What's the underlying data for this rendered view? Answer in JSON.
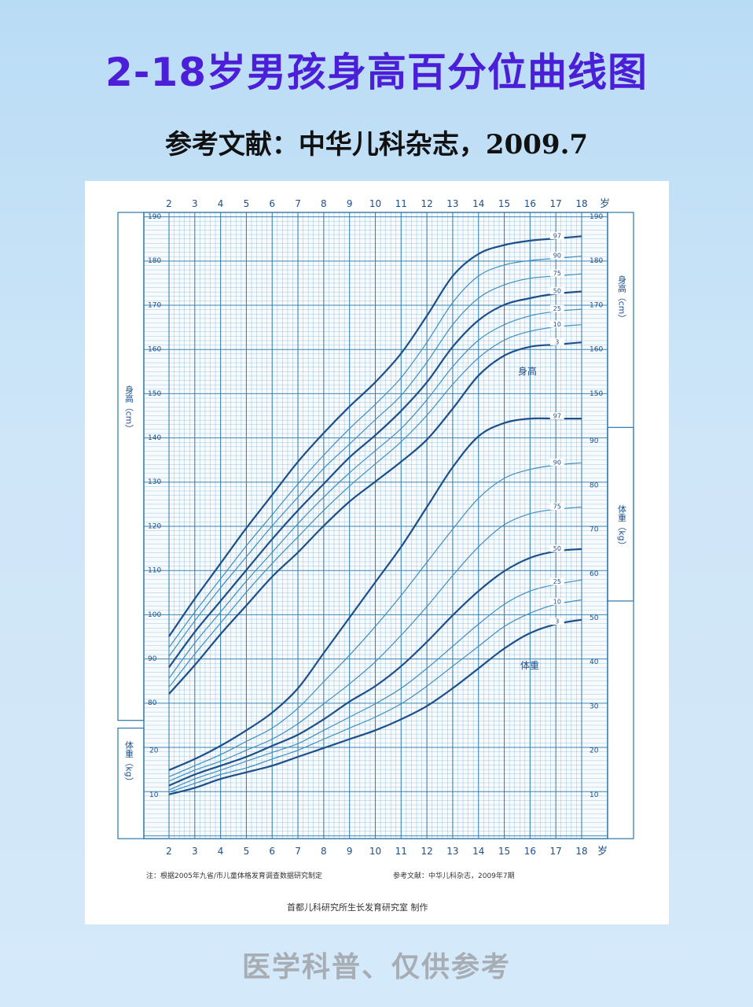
{
  "page": {
    "title": "2-18岁男孩身高百分位曲线图",
    "subtitle": "参考文献：中华儿科杂志，2009.7",
    "footer": "医学科普、仅供参考"
  },
  "chart_card": {
    "note": "注：根据2005年九省/市儿童体格发育调查数据研究制定",
    "reference": "参考文献：中华儿科杂志，2009年7期",
    "maker": "首都儿科研究所生长发育研究室  制作",
    "age_unit": "岁",
    "height_curve_label": "身高",
    "weight_curve_label": "体重"
  },
  "colors": {
    "title": "#4b1fd8",
    "grid": "#2b78a8",
    "major_curve": "#1d4f8a",
    "minor_curve": "#3f8fc0",
    "background": "#cfe6f8"
  },
  "chart_data": {
    "type": "line",
    "x_axis": {
      "label": "岁",
      "range": [
        2,
        18
      ],
      "ticks": [
        2,
        3,
        4,
        5,
        6,
        7,
        8,
        9,
        10,
        11,
        12,
        13,
        14,
        15,
        16,
        17,
        18
      ]
    },
    "height_axis": {
      "label": "身高（cm）",
      "range": [
        75,
        190
      ],
      "ticks": [
        80,
        90,
        100,
        110,
        120,
        130,
        140,
        150,
        160,
        170,
        180,
        190
      ]
    },
    "weight_axis": {
      "label": "体重（kg）",
      "range": [
        0,
        95
      ],
      "ticks": [
        10,
        20,
        30,
        40,
        50,
        60,
        70,
        80,
        90
      ]
    },
    "ages": [
      2,
      3,
      4,
      5,
      6,
      7,
      8,
      9,
      10,
      11,
      12,
      13,
      14,
      15,
      16,
      17,
      18
    ],
    "height_series": [
      {
        "name": "97",
        "values": [
          95.0,
          103.5,
          111.5,
          119.5,
          127.0,
          134.5,
          141.0,
          147.0,
          152.5,
          159.0,
          167.5,
          176.5,
          181.5,
          183.5,
          184.5,
          185.0,
          185.5
        ]
      },
      {
        "name": "90",
        "values": [
          92.5,
          100.5,
          108.0,
          115.5,
          122.5,
          129.5,
          136.0,
          142.0,
          147.5,
          153.5,
          161.5,
          170.5,
          176.5,
          179.0,
          180.0,
          180.5,
          181.0
        ]
      },
      {
        "name": "75",
        "values": [
          90.5,
          98.5,
          106.0,
          113.0,
          120.0,
          126.5,
          133.0,
          138.5,
          144.0,
          149.5,
          157.0,
          165.5,
          171.5,
          174.5,
          176.0,
          176.5,
          177.0
        ]
      },
      {
        "name": "50",
        "values": [
          88.0,
          96.0,
          103.0,
          110.0,
          117.0,
          123.5,
          129.5,
          135.5,
          140.5,
          146.0,
          152.5,
          160.5,
          166.5,
          170.0,
          171.5,
          172.5,
          173.0
        ]
      },
      {
        "name": "25",
        "values": [
          85.5,
          93.5,
          100.5,
          107.5,
          114.0,
          120.5,
          126.5,
          132.0,
          137.0,
          142.0,
          148.5,
          156.0,
          162.0,
          165.5,
          167.5,
          168.5,
          169.0
        ]
      },
      {
        "name": "10",
        "values": [
          83.5,
          91.0,
          98.0,
          105.0,
          111.5,
          117.5,
          123.5,
          129.0,
          134.0,
          139.0,
          145.0,
          152.0,
          158.0,
          162.0,
          164.0,
          165.0,
          165.5
        ]
      },
      {
        "name": "3",
        "values": [
          82.0,
          88.5,
          95.5,
          102.0,
          108.5,
          114.0,
          120.0,
          125.5,
          130.0,
          134.5,
          139.5,
          146.5,
          154.0,
          158.5,
          160.5,
          161.0,
          161.5
        ]
      }
    ],
    "weight_series": [
      {
        "name": "97",
        "values": [
          15.5,
          18.0,
          21.0,
          24.5,
          28.5,
          34.0,
          42.0,
          50.0,
          58.0,
          66.0,
          75.0,
          84.0,
          91.0,
          94.0,
          95.0,
          95.0,
          95.0
        ]
      },
      {
        "name": "90",
        "values": [
          14.0,
          16.5,
          19.0,
          22.0,
          25.0,
          29.5,
          35.5,
          41.5,
          48.0,
          55.0,
          62.5,
          70.0,
          77.0,
          81.5,
          83.5,
          84.5,
          85.0
        ]
      },
      {
        "name": "75",
        "values": [
          13.0,
          15.5,
          17.5,
          20.0,
          22.5,
          26.0,
          30.5,
          35.0,
          40.0,
          46.0,
          52.5,
          59.5,
          66.0,
          71.0,
          73.5,
          74.5,
          75.0
        ]
      },
      {
        "name": "50",
        "values": [
          12.0,
          14.5,
          16.5,
          18.5,
          21.0,
          23.5,
          27.0,
          31.0,
          34.5,
          39.0,
          44.5,
          50.5,
          56.0,
          60.5,
          63.5,
          65.0,
          65.5
        ]
      },
      {
        "name": "25",
        "values": [
          11.0,
          13.5,
          15.5,
          17.5,
          19.5,
          21.5,
          24.5,
          27.5,
          30.5,
          34.0,
          38.5,
          43.5,
          48.5,
          53.0,
          56.0,
          57.5,
          58.5
        ]
      },
      {
        "name": "10",
        "values": [
          10.5,
          12.5,
          14.5,
          16.0,
          18.0,
          20.0,
          22.5,
          25.0,
          27.5,
          30.5,
          34.5,
          39.0,
          43.5,
          48.0,
          51.0,
          53.0,
          54.0
        ]
      },
      {
        "name": "3",
        "values": [
          10.0,
          11.5,
          13.5,
          15.0,
          16.5,
          18.5,
          20.5,
          22.5,
          24.5,
          27.0,
          30.0,
          34.0,
          38.5,
          43.0,
          46.5,
          48.5,
          49.5
        ]
      }
    ]
  }
}
